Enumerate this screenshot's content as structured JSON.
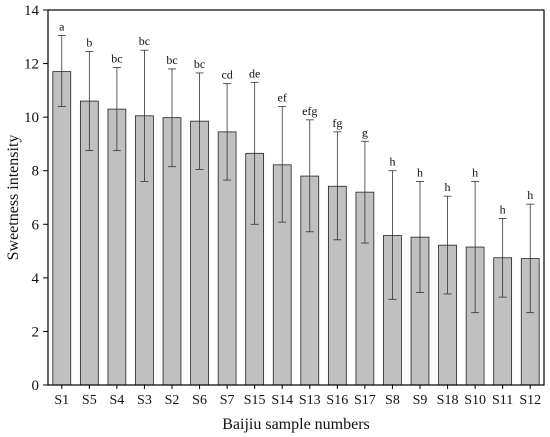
{
  "chart_data": {
    "type": "bar",
    "title": "",
    "xlabel": "Baijiu sample numbers",
    "ylabel": "Sweetness intensity",
    "ylim": [
      0,
      14
    ],
    "yticks": [
      0,
      2,
      4,
      6,
      8,
      10,
      12,
      14
    ],
    "grid": false,
    "legend": "none",
    "categories": [
      "S1",
      "S5",
      "S4",
      "S3",
      "S2",
      "S6",
      "S7",
      "S15",
      "S14",
      "S13",
      "S16",
      "S17",
      "S8",
      "S9",
      "S18",
      "S10",
      "S11",
      "S12"
    ],
    "values": [
      11.7,
      10.6,
      10.3,
      10.05,
      9.98,
      9.85,
      9.45,
      8.65,
      8.22,
      7.8,
      7.42,
      7.2,
      5.58,
      5.52,
      5.22,
      5.15,
      4.75,
      4.72
    ],
    "error_upper": [
      13.05,
      12.45,
      11.85,
      12.5,
      11.8,
      11.65,
      11.25,
      11.3,
      10.4,
      9.9,
      9.45,
      9.1,
      8.0,
      7.6,
      7.05,
      7.6,
      6.22,
      6.75
    ],
    "error_lower": [
      10.4,
      8.75,
      8.75,
      7.6,
      8.15,
      8.05,
      7.65,
      6.0,
      6.08,
      5.72,
      5.42,
      5.3,
      3.2,
      3.45,
      3.4,
      2.7,
      3.28,
      2.7
    ],
    "significance_letters": [
      "a",
      "b",
      "bc",
      "bc",
      "bc",
      "bc",
      "cd",
      "de",
      "ef",
      "efg",
      "fg",
      "g",
      "h",
      "h",
      "h",
      "h",
      "h",
      "h"
    ],
    "colors": {
      "bar_fill": "#c0c0c0",
      "bar_stroke": "#222222",
      "axis": "#000000"
    }
  }
}
